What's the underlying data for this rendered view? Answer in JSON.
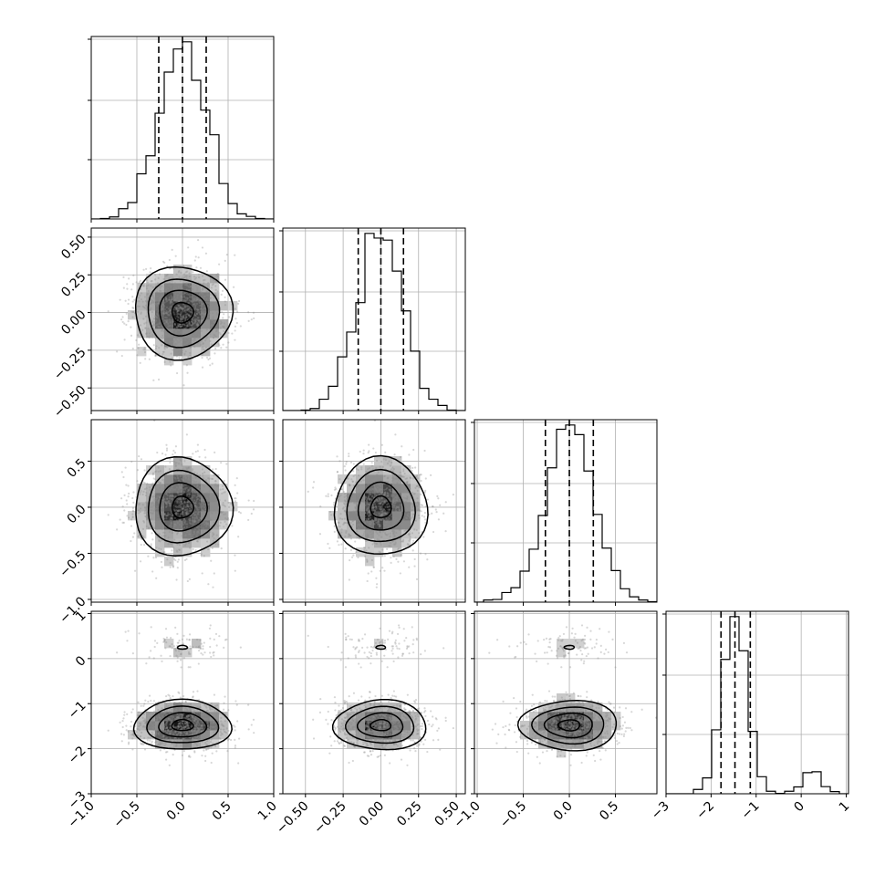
{
  "chart_data": {
    "type": "corner",
    "grid": true,
    "parameters": [
      {
        "range": [
          -1.0,
          1.0
        ],
        "ticks": [
          -1.0,
          -0.5,
          0.0,
          0.5,
          1.0
        ],
        "tick_labels": [
          "−1.0",
          "−0.5",
          "0.0",
          "0.5",
          "1.0"
        ],
        "quantiles": [
          -0.26,
          0.0,
          0.26
        ],
        "dist": {
          "type": "normal",
          "mean": 0.0,
          "sd": 0.26
        }
      },
      {
        "range": [
          -0.65,
          0.56
        ],
        "ticks": [
          -0.5,
          -0.25,
          0.0,
          0.25,
          0.5
        ],
        "tick_labels": [
          "−0.50",
          "−0.25",
          "0.00",
          "0.25",
          "0.50"
        ],
        "quantiles": [
          -0.15,
          0.0,
          0.15
        ],
        "dist": {
          "type": "normal",
          "mean": 0.0,
          "sd": 0.15
        }
      },
      {
        "range": [
          -1.03,
          0.95
        ],
        "ticks": [
          -1.0,
          -0.5,
          0.0,
          0.5
        ],
        "tick_labels": [
          "−1.0",
          "−0.5",
          "0.0",
          "0.5"
        ],
        "quantiles": [
          -0.26,
          0.0,
          0.26
        ],
        "dist": {
          "type": "normal",
          "mean": 0.0,
          "sd": 0.26
        }
      },
      {
        "range": [
          -3.0,
          1.05
        ],
        "ticks": [
          -3,
          -2,
          -1,
          0,
          1
        ],
        "tick_labels": [
          "−3",
          "−2",
          "−1",
          "0",
          "1"
        ],
        "quantiles": [
          -1.78,
          -1.47,
          -1.13
        ],
        "dist": {
          "type": "mixture",
          "components": [
            {
              "weight": 0.9,
              "mean": -1.48,
              "sd": 0.27
            },
            {
              "weight": 0.1,
              "mean": 0.25,
              "sd": 0.2
            }
          ]
        }
      }
    ],
    "samples_per_panel": 2200
  }
}
